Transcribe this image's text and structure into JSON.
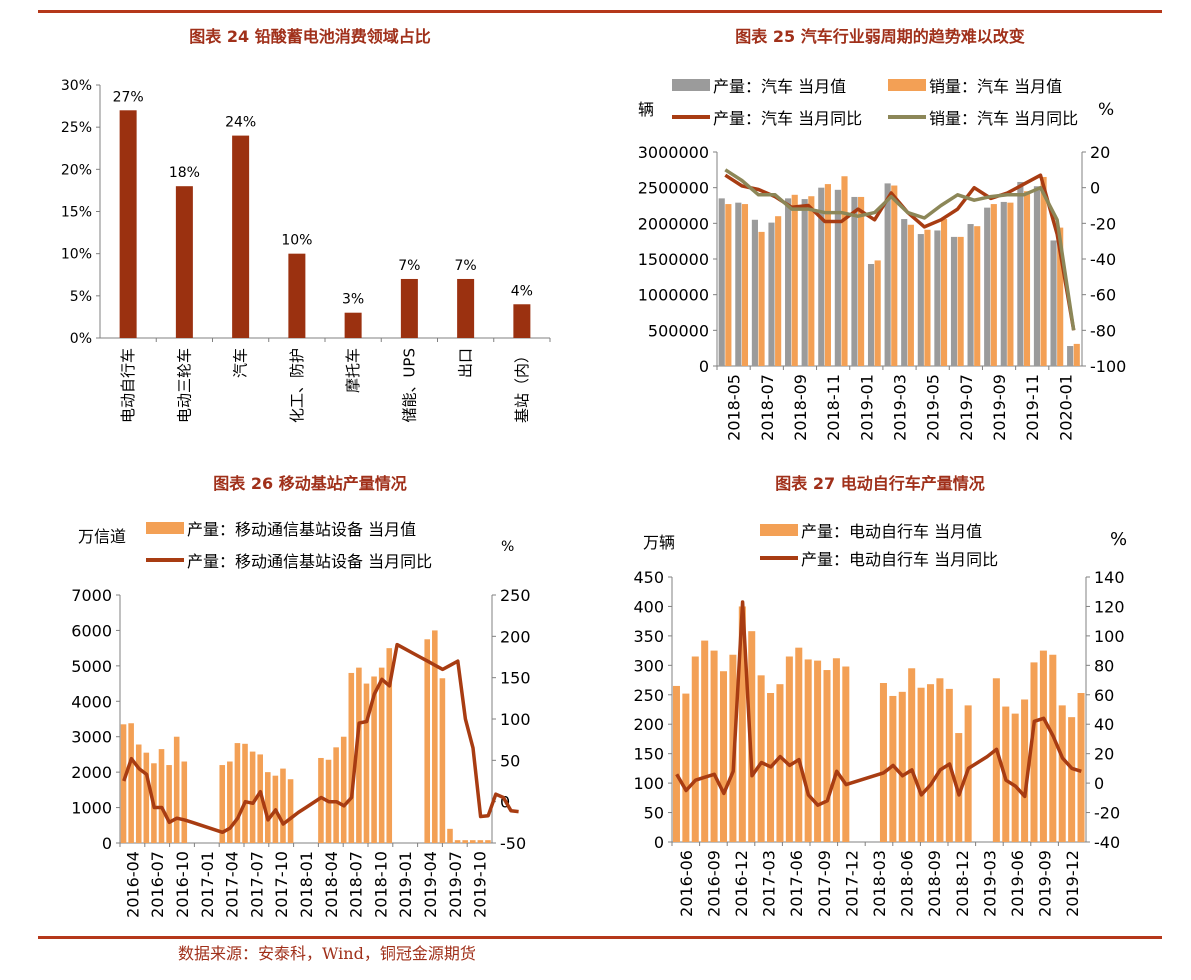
{
  "source": "数据来源：安泰科，Wind，铜冠金源期货",
  "colors": {
    "rule": "#b5381a",
    "title": "#a0301a",
    "bar_dark": "#9b3110",
    "bar_gray": "#9b9b9b",
    "bar_orange": "#f3a055",
    "line_brown": "#a83c12",
    "line_olive": "#8c8758"
  },
  "chart_data": [
    {
      "type": "bar",
      "title": "图表 24  铅酸蓄电池消费领域占比",
      "categories": [
        "电动自行车",
        "电动三轮车",
        "汽车",
        "化工、防护",
        "摩托车",
        "储能、UPS",
        "出口",
        "基站（内）"
      ],
      "values": [
        27,
        18,
        24,
        10,
        3,
        7,
        7,
        4
      ],
      "value_labels": [
        "27%",
        "18%",
        "24%",
        "10%",
        "3%",
        "7%",
        "7%",
        "4%"
      ],
      "ylim": [
        0,
        30
      ],
      "yticks": [
        "0%",
        "5%",
        "10%",
        "15%",
        "20%",
        "25%",
        "30%"
      ],
      "grid": false,
      "legend": "none"
    },
    {
      "type": "bar+line",
      "title": "图表 25  汽车行业弱周期的趋势难以改变",
      "left_unit": "辆",
      "right_unit": "%",
      "legend_position": "top",
      "x_tick_labels": [
        "2018-05",
        "2018-07",
        "2018-09",
        "2018-11",
        "2019-01",
        "2019-03",
        "2019-05",
        "2019-07",
        "2019-09",
        "2019-11",
        "2020-01"
      ],
      "x": [
        "2018-05",
        "2018-06",
        "2018-07",
        "2018-08",
        "2018-09",
        "2018-10",
        "2018-11",
        "2018-12",
        "2019-01",
        "2019-02",
        "2019-03",
        "2019-04",
        "2019-05",
        "2019-06",
        "2019-07",
        "2019-08",
        "2019-09",
        "2019-10",
        "2019-11",
        "2019-12",
        "2020-01",
        "2020-02"
      ],
      "ylim_left": [
        0,
        3000000
      ],
      "yticks_left": [
        "0",
        "500000",
        "1000000",
        "1500000",
        "2000000",
        "2500000",
        "3000000"
      ],
      "ylim_right": [
        -100,
        20
      ],
      "yticks_right": [
        "-100",
        "-80",
        "-60",
        "-40",
        "-20",
        "0",
        "20"
      ],
      "series": [
        {
          "name": "产量：汽车 当月值",
          "kind": "bar",
          "color": "#9b9b9b",
          "values": [
            2350000,
            2290000,
            2050000,
            2010000,
            2350000,
            2340000,
            2500000,
            2470000,
            2370000,
            1430000,
            2560000,
            2060000,
            1850000,
            1900000,
            1810000,
            1990000,
            2220000,
            2300000,
            2580000,
            2520000,
            1760000,
            280000
          ]
        },
        {
          "name": "销量：汽车 当月值",
          "kind": "bar",
          "color": "#f3a055",
          "values": [
            2270000,
            2270000,
            1880000,
            2100000,
            2400000,
            2380000,
            2550000,
            2660000,
            2370000,
            1480000,
            2530000,
            1980000,
            1910000,
            2060000,
            1810000,
            1960000,
            2270000,
            2290000,
            2450000,
            2650000,
            1940000,
            310000
          ]
        },
        {
          "name": "产量：汽车 当月同比",
          "kind": "line",
          "axis": "right",
          "color": "#a83c12",
          "values": [
            7,
            1,
            -1,
            -5,
            -11,
            -10,
            -19,
            -19,
            -12,
            -18,
            -3,
            -14,
            -22,
            -18,
            -12,
            0,
            -6,
            -3,
            2,
            7,
            -26,
            -80
          ]
        },
        {
          "name": "销量：汽车 当月同比",
          "kind": "line",
          "axis": "right",
          "color": "#8c8758",
          "values": [
            10,
            4,
            -4,
            -4,
            -12,
            -12,
            -14,
            -14,
            -16,
            -14,
            -5,
            -14,
            -17,
            -10,
            -4,
            -7,
            -5,
            -4,
            -4,
            0,
            -18,
            -80
          ]
        }
      ]
    },
    {
      "type": "bar+line",
      "title": "图表 26 移动基站产量情况",
      "left_unit": "万信道",
      "right_unit": "%",
      "legend_position": "top",
      "x_tick_labels": [
        "2016-04",
        "2016-07",
        "2016-10",
        "2017-01",
        "2017-04",
        "2017-07",
        "2017-10",
        "2018-01",
        "2018-04",
        "2018-07",
        "2018-10",
        "2019-01",
        "2019-04",
        "2019-07",
        "2019-10"
      ],
      "ylim_left": [
        0,
        7000
      ],
      "yticks_left": [
        "0",
        "1000",
        "2000",
        "3000",
        "4000",
        "5000",
        "6000",
        "7000"
      ],
      "ylim_right": [
        -50,
        250
      ],
      "yticks_right": [
        "-50",
        "0",
        "50",
        "100",
        "150",
        "200",
        "250"
      ],
      "series": [
        {
          "name": "产量：移动通信基站设备 当月值",
          "kind": "bar",
          "color": "#f3a055",
          "values": [
            3350,
            3380,
            2780,
            2550,
            2250,
            2650,
            2200,
            3000,
            2300,
            null,
            null,
            null,
            null,
            2200,
            2300,
            2820,
            2800,
            2580,
            2500,
            2000,
            1900,
            2100,
            1800,
            null,
            null,
            null,
            2400,
            2350,
            2700,
            3000,
            4800,
            4950,
            4500,
            4700,
            4950,
            5500,
            null,
            null,
            null,
            null,
            5750,
            6000,
            4650,
            400,
            80,
            80,
            80,
            80,
            80
          ]
        },
        {
          "name": "产量：移动通信基站设备 当月同比",
          "kind": "line",
          "axis": "right",
          "color": "#a83c12",
          "values": [
            25,
            52,
            40,
            33,
            -7,
            -7,
            -25,
            -20,
            -22,
            -25,
            -28,
            -31,
            -34,
            -37,
            -32,
            -20,
            0,
            -2,
            12,
            -22,
            -10,
            -27,
            -20,
            -13,
            -7,
            -1,
            5,
            0,
            0,
            -5,
            5,
            95,
            97,
            130,
            148,
            140,
            190,
            185,
            180,
            175,
            170,
            165,
            160,
            165,
            170,
            100,
            65,
            -18,
            -17,
            9,
            5,
            -11,
            -12
          ]
        }
      ]
    },
    {
      "type": "bar+line",
      "title": "图表 27  电动自行车产量情况",
      "left_unit": "万辆",
      "right_unit": "%",
      "legend_position": "top",
      "x_tick_labels": [
        "2016-06",
        "2016-09",
        "2016-12",
        "2017-03",
        "2017-06",
        "2017-09",
        "2017-12",
        "2018-03",
        "2018-06",
        "2018-09",
        "2018-12",
        "2019-03",
        "2019-06",
        "2019-09",
        "2019-12"
      ],
      "ylim_left": [
        0,
        450
      ],
      "yticks_left": [
        "0",
        "50",
        "100",
        "150",
        "200",
        "250",
        "300",
        "350",
        "400",
        "450"
      ],
      "ylim_right": [
        -40,
        140
      ],
      "yticks_right": [
        "-40",
        "-20",
        "0",
        "20",
        "40",
        "60",
        "80",
        "100",
        "120",
        "140"
      ],
      "series": [
        {
          "name": "产量：电动自行车 当月值",
          "kind": "bar",
          "color": "#f3a055",
          "values": [
            265,
            252,
            315,
            342,
            325,
            290,
            318,
            400,
            358,
            283,
            253,
            268,
            315,
            330,
            310,
            308,
            292,
            312,
            298,
            null,
            null,
            null,
            270,
            248,
            255,
            295,
            262,
            268,
            278,
            260,
            185,
            232,
            null,
            null,
            278,
            230,
            218,
            242,
            305,
            325,
            318,
            232,
            212,
            253
          ]
        },
        {
          "name": "产量：电动自行车 当月同比",
          "kind": "line",
          "axis": "right",
          "color": "#a83c12",
          "values": [
            6,
            -5,
            2,
            4,
            6,
            -7,
            8,
            123,
            5,
            14,
            11,
            18,
            12,
            16,
            -8,
            -15,
            -12,
            8,
            -1,
            null,
            null,
            null,
            7,
            12,
            5,
            9,
            -8,
            -1,
            9,
            13,
            -8,
            10,
            14,
            18,
            23,
            2,
            -2,
            -9,
            42,
            44,
            32,
            17,
            10,
            8
          ]
        }
      ]
    }
  ]
}
